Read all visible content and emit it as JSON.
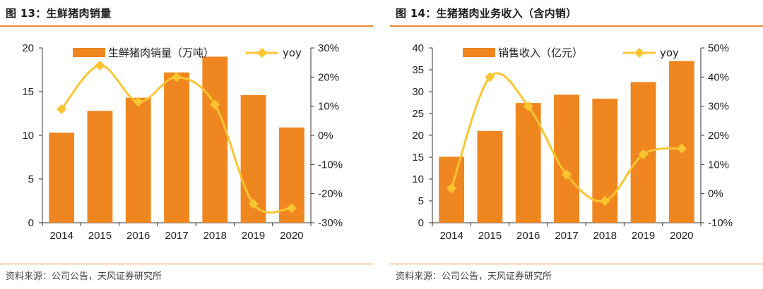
{
  "source_text": "资料来源：公司公告，天风证券研究所",
  "charts": [
    {
      "figure_title": "图 13：生鲜猪肉销量",
      "legend_bar": "生鲜猪肉销量（万吨）",
      "legend_line": "yoy",
      "bar_color": "#f0861f",
      "line_color": "#fbc531"
    },
    {
      "figure_title": "图 14：生猪猪肉业务收入（含内销）",
      "legend_bar": "销售收入（亿元）",
      "legend_line": "yoy",
      "bar_color": "#f0861f",
      "line_color": "#fbc531"
    }
  ],
  "chart_data": [
    {
      "type": "bar",
      "categories": [
        "2014",
        "2015",
        "2016",
        "2017",
        "2018",
        "2019",
        "2020"
      ],
      "series": [
        {
          "name": "生鲜猪肉销量（万吨）",
          "type": "bar",
          "axis": "left",
          "values": [
            10.3,
            12.8,
            14.3,
            17.2,
            19.0,
            14.6,
            10.9
          ]
        },
        {
          "name": "yoy",
          "type": "line",
          "axis": "right",
          "values": [
            0.09,
            0.24,
            0.115,
            0.2,
            0.105,
            -0.235,
            -0.25
          ]
        }
      ],
      "ylim_left": [
        0,
        20
      ],
      "yticks_left": [
        "0",
        "5",
        "10",
        "15",
        "20"
      ],
      "ylim_right": [
        -0.3,
        0.3
      ],
      "yticks_right": [
        "-30%",
        "-20%",
        "-10%",
        "0%",
        "10%",
        "20%",
        "30%"
      ],
      "legend_position": "top-center",
      "grid": false
    },
    {
      "type": "bar",
      "categories": [
        "2014",
        "2015",
        "2016",
        "2017",
        "2018",
        "2019",
        "2020"
      ],
      "series": [
        {
          "name": "销售收入（亿元）",
          "type": "bar",
          "axis": "left",
          "values": [
            15.1,
            21.0,
            27.4,
            29.3,
            28.4,
            32.2,
            37.0
          ]
        },
        {
          "name": "yoy",
          "type": "line",
          "axis": "right",
          "values": [
            0.018,
            0.4,
            0.3,
            0.065,
            -0.025,
            0.135,
            0.155
          ]
        }
      ],
      "ylim_left": [
        0,
        40
      ],
      "yticks_left": [
        "0",
        "5",
        "10",
        "15",
        "20",
        "25",
        "30",
        "35",
        "40"
      ],
      "ylim_right": [
        -0.1,
        0.5
      ],
      "yticks_right": [
        "-10%",
        "0%",
        "10%",
        "20%",
        "30%",
        "40%",
        "50%"
      ],
      "legend_position": "top-center",
      "grid": false
    }
  ]
}
